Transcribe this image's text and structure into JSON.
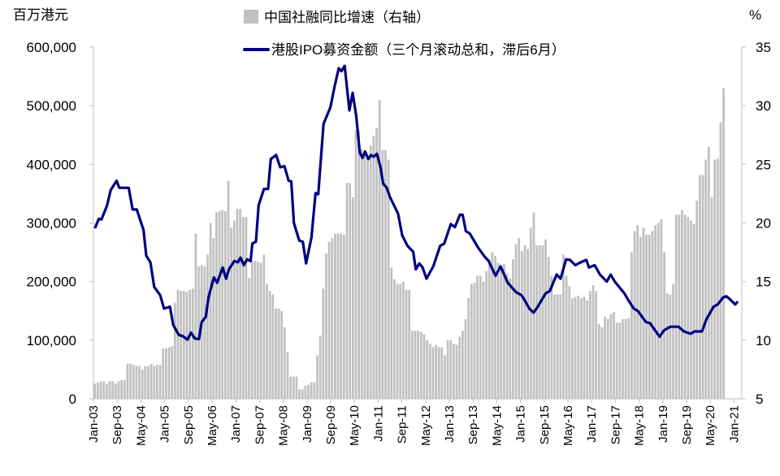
{
  "chart_data": {
    "type": "bar+line",
    "title": "",
    "left_axis": {
      "unit_label": "百万港元",
      "range": [
        0,
        600000
      ],
      "ticks": [
        "0",
        "100,000",
        "200,000",
        "300,000",
        "400,000",
        "500,000",
        "600,000"
      ],
      "tick_values": [
        0,
        100000,
        200000,
        300000,
        400000,
        500000,
        600000
      ]
    },
    "right_axis": {
      "unit_label": "%",
      "range": [
        5,
        35
      ],
      "ticks": [
        "5",
        "10",
        "15",
        "20",
        "25",
        "30",
        "35"
      ],
      "tick_values": [
        5,
        10,
        15,
        20,
        25,
        30,
        35
      ]
    },
    "x_axis": {
      "start": "Jan-03",
      "x_unit": "months since Jan-03",
      "ticks": [
        "Jan-03",
        "Sep-03",
        "May-04",
        "Jan-05",
        "Sep-05",
        "May-06",
        "Jan-07",
        "Sep-07",
        "May-08",
        "Jan-09",
        "Sep-09",
        "May-10",
        "Jan-11",
        "Sep-11",
        "May-12",
        "Jan-13",
        "Sep-13",
        "May-14",
        "Jan-15",
        "Sep-15",
        "May-16",
        "Jan-17",
        "Sep-17",
        "May-18",
        "Jan-19",
        "Sep-19",
        "May-20",
        "Jan-21"
      ],
      "tick_step_months": 8
    },
    "legend_position": "top-center",
    "series": [
      {
        "name": "中国社融同比增速（右轴）",
        "type": "bar",
        "axis": "right",
        "color": "#c0c0c0",
        "monthly_values_from_Jan-03": [
          6.3,
          6.4,
          6.5,
          6.5,
          6.3,
          6.5,
          6.5,
          6.3,
          6.5,
          6.6,
          6.6,
          8.0,
          8.0,
          7.9,
          7.8,
          7.8,
          7.5,
          7.8,
          7.8,
          8.0,
          7.8,
          7.9,
          7.9,
          9.3,
          9.3,
          9.4,
          9.5,
          13.2,
          14.3,
          14.2,
          14.2,
          14.1,
          14.3,
          14.4,
          19.1,
          16.3,
          16.4,
          16.3,
          17.3,
          20.0,
          18.7,
          20.9,
          21.0,
          21.1,
          21.0,
          23.6,
          19.6,
          20.2,
          21.2,
          21.2,
          20.5,
          20.5,
          15.3,
          16.8,
          16.8,
          16.7,
          16.6,
          17.3,
          14.8,
          14.2,
          13.9,
          12.7,
          12.7,
          12.5,
          11.1,
          9.0,
          6.9,
          6.9,
          6.9,
          5.8,
          5.8,
          6.1,
          6.2,
          6.4,
          6.4,
          8.7,
          10.4,
          14.4,
          17.4,
          18.4,
          18.7,
          19.1,
          19.1,
          19.1,
          19.0,
          23.4,
          23.4,
          22.2,
          27.9,
          27.9,
          26.3,
          25.9,
          25.5,
          26.6,
          27.4,
          28.1,
          30.5,
          26.2,
          26.2,
          25.4,
          16.2,
          15.2,
          14.8,
          14.8,
          15.0,
          14.3,
          14.3,
          10.8,
          10.8,
          10.8,
          10.7,
          10.5,
          10.0,
          9.7,
          9.4,
          9.6,
          9.4,
          9.4,
          8.7,
          10.0,
          10.0,
          9.7,
          9.6,
          10.3,
          10.8,
          11.8,
          13.6,
          14.8,
          14.9,
          15.5,
          15.5,
          15.0,
          15.9,
          16.9,
          17.5,
          17.2,
          16.6,
          16.0,
          16.5,
          15.7,
          15.3,
          16.9,
          18.2,
          18.7,
          17.6,
          18.1,
          17.8,
          19.6,
          20.9,
          18.1,
          18.1,
          18.1,
          18.6,
          17.1,
          15.5,
          13.9,
          13.9,
          13.9,
          17.3,
          15.5,
          14.6,
          13.6,
          13.7,
          13.8,
          13.6,
          13.7,
          13.4,
          14.2,
          14.7,
          14.2,
          11.4,
          11.1,
          12.0,
          11.8,
          12.2,
          12.4,
          11.5,
          11.5,
          11.8,
          11.8,
          11.9,
          17.5,
          19.3,
          19.8,
          18.8,
          19.6,
          19.0,
          19.0,
          19.3,
          19.8,
          20.0,
          20.3,
          17.5,
          14.0,
          13.9,
          14.8,
          20.7,
          20.7,
          21.1,
          20.7,
          20.5,
          20.2,
          19.9,
          21.9,
          24.1,
          24.1,
          25.4,
          26.5,
          22.2,
          25.4,
          25.5,
          28.6,
          31.5
        ]
      },
      {
        "name": "港股IPO募资金额（三个月滚动总和，滞后6月）",
        "type": "line",
        "axis": "left",
        "color": "#000080",
        "points_month_value": [
          [
            0.5,
            291000
          ],
          [
            1.8,
            307000
          ],
          [
            2.7,
            306000
          ],
          [
            4.6,
            330000
          ],
          [
            5.8,
            356000
          ],
          [
            7.8,
            372000
          ],
          [
            8.7,
            360000
          ],
          [
            11.9,
            360000
          ],
          [
            13.2,
            323000
          ],
          [
            14.6,
            323000
          ],
          [
            16.9,
            288000
          ],
          [
            17.8,
            244000
          ],
          [
            19.2,
            233000
          ],
          [
            20.5,
            191000
          ],
          [
            22.5,
            177000
          ],
          [
            23.8,
            154000
          ],
          [
            25.8,
            157000
          ],
          [
            26.9,
            126000
          ],
          [
            28.8,
            109000
          ],
          [
            30.1,
            107000
          ],
          [
            31.7,
            101000
          ],
          [
            32.9,
            113000
          ],
          [
            34.2,
            103000
          ],
          [
            35.6,
            102000
          ],
          [
            36.5,
            131000
          ],
          [
            37.9,
            140000
          ],
          [
            38.8,
            173000
          ],
          [
            40.6,
            207000
          ],
          [
            41.7,
            198000
          ],
          [
            43.6,
            224000
          ],
          [
            44.7,
            205000
          ],
          [
            45.7,
            221000
          ],
          [
            47.5,
            235000
          ],
          [
            48.7,
            233000
          ],
          [
            49.6,
            241000
          ],
          [
            50.7,
            228000
          ],
          [
            51.8,
            238000
          ],
          [
            53.0,
            235000
          ],
          [
            53.6,
            265000
          ],
          [
            54.8,
            268000
          ],
          [
            55.7,
            330000
          ],
          [
            57.5,
            358000
          ],
          [
            58.9,
            358000
          ],
          [
            59.8,
            409000
          ],
          [
            61.6,
            416000
          ],
          [
            63.0,
            395000
          ],
          [
            64.4,
            397000
          ],
          [
            65.8,
            372000
          ],
          [
            66.7,
            371000
          ],
          [
            67.6,
            300000
          ],
          [
            69.4,
            270000
          ],
          [
            70.6,
            268000
          ],
          [
            71.7,
            231000
          ],
          [
            73.5,
            275000
          ],
          [
            74.9,
            351000
          ],
          [
            75.8,
            349000
          ],
          [
            77.6,
            469000
          ],
          [
            79.9,
            497000
          ],
          [
            81.3,
            532000
          ],
          [
            82.7,
            564000
          ],
          [
            83.6,
            559000
          ],
          [
            84.7,
            568000
          ],
          [
            86.3,
            492000
          ],
          [
            87.4,
            522000
          ],
          [
            88.6,
            483000
          ],
          [
            89.8,
            420000
          ],
          [
            90.7,
            411000
          ],
          [
            91.6,
            422000
          ],
          [
            92.7,
            409000
          ],
          [
            93.6,
            416000
          ],
          [
            94.5,
            413000
          ],
          [
            95.6,
            418000
          ],
          [
            96.8,
            395000
          ],
          [
            97.7,
            367000
          ],
          [
            98.9,
            360000
          ],
          [
            100.0,
            344000
          ],
          [
            102.7,
            316000
          ],
          [
            104.1,
            279000
          ],
          [
            105.9,
            261000
          ],
          [
            107.8,
            251000
          ],
          [
            108.7,
            221000
          ],
          [
            109.9,
            231000
          ],
          [
            111.0,
            224000
          ],
          [
            112.3,
            205000
          ],
          [
            114.6,
            226000
          ],
          [
            116.9,
            261000
          ],
          [
            118.3,
            265000
          ],
          [
            120.5,
            298000
          ],
          [
            121.9,
            293000
          ],
          [
            123.6,
            314000
          ],
          [
            124.5,
            314000
          ],
          [
            125.6,
            286000
          ],
          [
            126.9,
            282000
          ],
          [
            129.7,
            258000
          ],
          [
            132.0,
            242000
          ],
          [
            133.3,
            235000
          ],
          [
            135.6,
            210000
          ],
          [
            137.3,
            226000
          ],
          [
            139.7,
            198000
          ],
          [
            142.5,
            182000
          ],
          [
            144.3,
            177000
          ],
          [
            145.2,
            170000
          ],
          [
            147.0,
            154000
          ],
          [
            148.4,
            147000
          ],
          [
            149.8,
            157000
          ],
          [
            152.5,
            180000
          ],
          [
            153.9,
            184000
          ],
          [
            156.2,
            212000
          ],
          [
            157.5,
            205000
          ],
          [
            159.4,
            238000
          ],
          [
            160.7,
            237000
          ],
          [
            162.5,
            228000
          ],
          [
            163.9,
            232000
          ],
          [
            166.2,
            237000
          ],
          [
            167.1,
            224000
          ],
          [
            169.0,
            228000
          ],
          [
            170.8,
            212000
          ],
          [
            173.1,
            200000
          ],
          [
            174.4,
            212000
          ],
          [
            175.8,
            200000
          ],
          [
            179.0,
            180000
          ],
          [
            180.4,
            168000
          ],
          [
            182.2,
            154000
          ],
          [
            183.6,
            150000
          ],
          [
            186.3,
            131000
          ],
          [
            187.7,
            129000
          ],
          [
            190.9,
            106000
          ],
          [
            192.4,
            117000
          ],
          [
            194.5,
            123000
          ],
          [
            197.3,
            123000
          ],
          [
            199.1,
            115000
          ],
          [
            201.4,
            111000
          ],
          [
            202.7,
            115000
          ],
          [
            205.2,
            115000
          ],
          [
            206.7,
            136000
          ],
          [
            209.1,
            157000
          ],
          [
            210.5,
            161000
          ],
          [
            212.3,
            173000
          ],
          [
            213.4,
            175000
          ],
          [
            214.6,
            170000
          ],
          [
            216.4,
            161000
          ],
          [
            217.3,
            166000
          ]
        ]
      }
    ]
  },
  "legend": {
    "bar_label": "中国社融同比增速（右轴）",
    "line_label": "港股IPO募资金额（三个月滚动总和，滞后6月）"
  },
  "axis_titles": {
    "left": "百万港元",
    "right": "%"
  }
}
